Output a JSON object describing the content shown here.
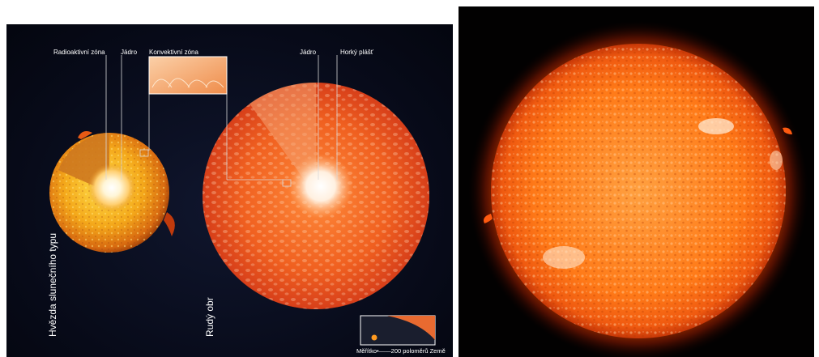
{
  "labels": {
    "radiative_zone": "Radioaktivní zóna",
    "core_sun": "Jádro",
    "convective_zone": "Konvektivní zóna",
    "core_giant": "Jádro",
    "hot_mantle": "Horký plášť",
    "sunlike_star": "Hvězda slunečního typu",
    "red_giant": "Rudý obr",
    "scale_prefix": "Měřítko",
    "scale_value": "200 poloměrů Země"
  },
  "colors": {
    "background": "#070a18",
    "star_yellow": "#ffb01a",
    "giant_red": "#e8471a",
    "sun_orange": "#ff7a10"
  }
}
